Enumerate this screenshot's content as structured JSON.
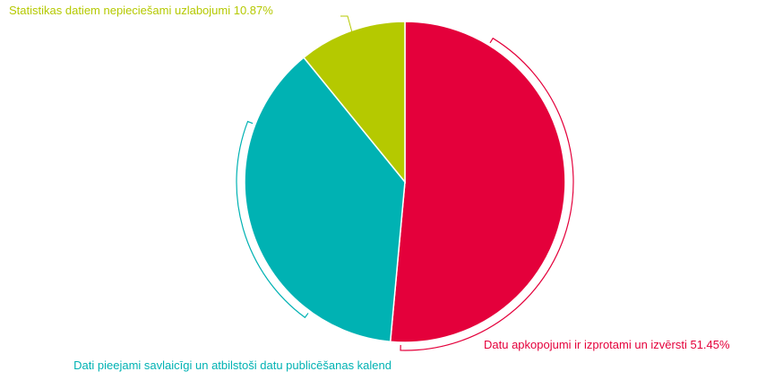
{
  "chart_data": {
    "type": "pie",
    "title": "",
    "legend": "none",
    "start_angle_deg": 0,
    "direction": "clockwise",
    "slices": [
      {
        "label": "Datu apkopojumi ir izprotami un izvērsti",
        "value": 51.45,
        "value_text": "51.45%",
        "color": "#e4003b"
      },
      {
        "label": "Dati pieejami savlaicīgi un atbilstoši datu publicēšanas kalend",
        "value": 37.68,
        "value_text": "",
        "color": "#00b2b3"
      },
      {
        "label": "Statistikas datiem nepieciešami uzlabojumi",
        "value": 10.87,
        "value_text": "10.87%",
        "color": "#b5c900"
      }
    ]
  }
}
